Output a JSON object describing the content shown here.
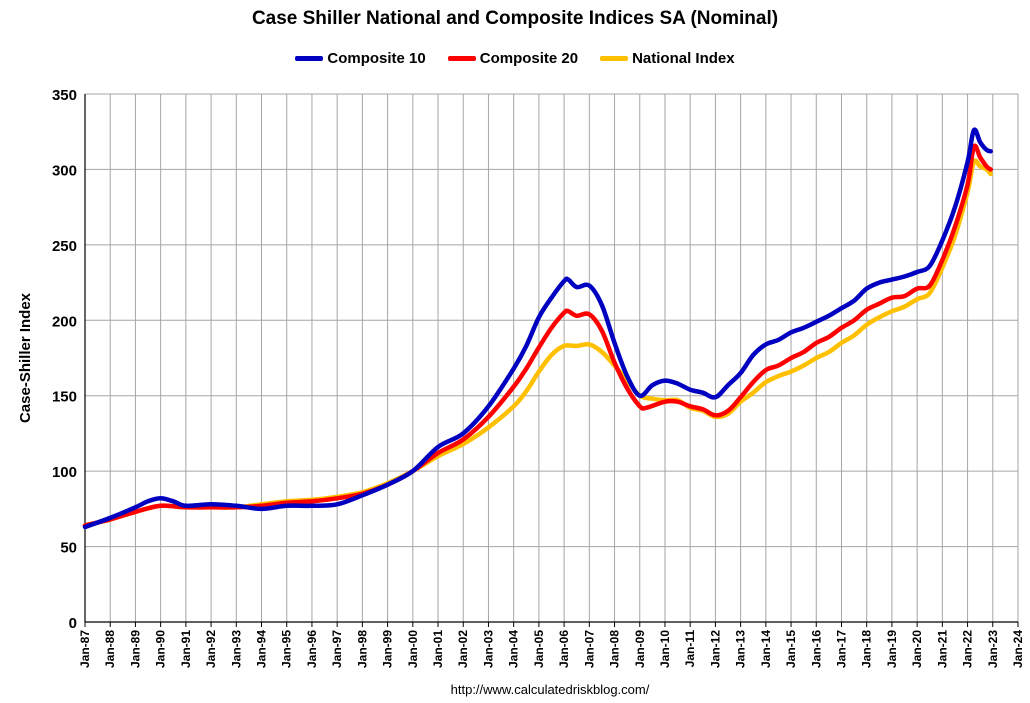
{
  "chart_data": {
    "type": "line",
    "title": "Case Shiller National and Composite Indices SA (Nominal)",
    "ylabel": "Case-Shiller Index",
    "xlabel": "",
    "ylim": [
      0,
      350
    ],
    "yticks": [
      0,
      50,
      100,
      150,
      200,
      250,
      300,
      350
    ],
    "xticks": [
      "Jan-87",
      "Jan-88",
      "Jan-89",
      "Jan-90",
      "Jan-91",
      "Jan-92",
      "Jan-93",
      "Jan-94",
      "Jan-95",
      "Jan-96",
      "Jan-97",
      "Jan-98",
      "Jan-99",
      "Jan-00",
      "Jan-01",
      "Jan-02",
      "Jan-03",
      "Jan-04",
      "Jan-05",
      "Jan-06",
      "Jan-07",
      "Jan-08",
      "Jan-09",
      "Jan-10",
      "Jan-11",
      "Jan-12",
      "Jan-13",
      "Jan-14",
      "Jan-15",
      "Jan-16",
      "Jan-17",
      "Jan-18",
      "Jan-19",
      "Jan-20",
      "Jan-21",
      "Jan-22",
      "Jan-23",
      "Jan-24"
    ],
    "grid": true,
    "legend_position": "top",
    "source": "http://www.calculatedriskblog.com/",
    "series": [
      {
        "name": "Composite 10",
        "color": "#0000c0",
        "x": [
          "Jan-87",
          "Jan-88",
          "Jan-89",
          "Jul-89",
          "Jan-90",
          "Jul-90",
          "Jan-91",
          "Jan-92",
          "Jan-93",
          "Jan-94",
          "Jan-95",
          "Jan-96",
          "Jan-97",
          "Jan-98",
          "Jan-99",
          "Jan-00",
          "Jan-01",
          "Jan-02",
          "Jan-03",
          "Jan-04",
          "Jul-04",
          "Jan-05",
          "Jul-05",
          "Jan-06",
          "Mar-06",
          "Jul-06",
          "Jan-07",
          "Jul-07",
          "Jan-08",
          "Jul-08",
          "Jan-09",
          "Jul-09",
          "Jan-10",
          "Jul-10",
          "Jan-11",
          "Jul-11",
          "Jan-12",
          "Jul-12",
          "Jan-13",
          "Jul-13",
          "Jan-14",
          "Jul-14",
          "Jan-15",
          "Jul-15",
          "Jan-16",
          "Jul-16",
          "Jan-17",
          "Jul-17",
          "Jan-18",
          "Jul-18",
          "Jan-19",
          "Jul-19",
          "Jan-20",
          "Jul-20",
          "Jan-21",
          "Jul-21",
          "Jan-22",
          "Apr-22",
          "Jul-22",
          "Oct-22",
          "Dec-22"
        ],
        "values": [
          63,
          69,
          76,
          80,
          82,
          80,
          77,
          78,
          77,
          75,
          77,
          77,
          78,
          84,
          91,
          100,
          116,
          125,
          143,
          168,
          183,
          202,
          215,
          226,
          227,
          222,
          223,
          210,
          185,
          163,
          150,
          157,
          160,
          158,
          154,
          152,
          149,
          157,
          165,
          177,
          184,
          187,
          192,
          195,
          199,
          203,
          208,
          213,
          221,
          225,
          227,
          229,
          232,
          236,
          253,
          275,
          305,
          326,
          318,
          313,
          312
        ]
      },
      {
        "name": "Composite 20",
        "color": "#ff0000",
        "x": [
          "Jan-87",
          "Jan-88",
          "Jan-89",
          "Jan-90",
          "Jan-91",
          "Jan-92",
          "Jan-93",
          "Jan-94",
          "Jan-95",
          "Jan-96",
          "Jan-97",
          "Jan-98",
          "Jan-99",
          "Jan-00",
          "Jan-01",
          "Jan-02",
          "Jan-03",
          "Jan-04",
          "Jul-04",
          "Jan-05",
          "Jul-05",
          "Jan-06",
          "Mar-06",
          "Jul-06",
          "Jan-07",
          "Jul-07",
          "Jan-08",
          "Jul-08",
          "Jan-09",
          "Apr-09",
          "Jan-10",
          "Jul-10",
          "Jan-11",
          "Jul-11",
          "Jan-12",
          "Jul-12",
          "Jan-13",
          "Jul-13",
          "Jan-14",
          "Jul-14",
          "Jan-15",
          "Jul-15",
          "Jan-16",
          "Jul-16",
          "Jan-17",
          "Jul-17",
          "Jan-18",
          "Jul-18",
          "Jan-19",
          "Jul-19",
          "Jan-20",
          "Jul-20",
          "Jan-21",
          "Jul-21",
          "Jan-22",
          "Apr-22",
          "Jul-22",
          "Oct-22",
          "Dec-22"
        ],
        "values": [
          64,
          68,
          73,
          77,
          76,
          76,
          76,
          77,
          79,
          80,
          82,
          85,
          91,
          100,
          112,
          121,
          136,
          156,
          168,
          182,
          195,
          205,
          206,
          203,
          204,
          193,
          172,
          155,
          143,
          142,
          146,
          146,
          143,
          141,
          137,
          140,
          149,
          159,
          167,
          170,
          175,
          179,
          185,
          189,
          195,
          200,
          207,
          211,
          215,
          216,
          221,
          223,
          240,
          262,
          290,
          315,
          308,
          302,
          300
        ]
      },
      {
        "name": "National Index",
        "color": "#ffc000",
        "x": [
          "Jan-87",
          "Jan-88",
          "Jan-89",
          "Jan-90",
          "Jan-91",
          "Jan-92",
          "Jan-93",
          "Jan-94",
          "Jan-95",
          "Jan-96",
          "Jan-97",
          "Jan-98",
          "Jan-99",
          "Jan-00",
          "Jan-01",
          "Jan-02",
          "Jan-03",
          "Jan-04",
          "Jul-04",
          "Jan-05",
          "Jul-05",
          "Jan-06",
          "Jul-06",
          "Jan-07",
          "Jul-07",
          "Jan-08",
          "Jul-08",
          "Jan-09",
          "Jul-09",
          "Jan-10",
          "Jul-10",
          "Jan-11",
          "Jul-11",
          "Jan-12",
          "Jul-12",
          "Jan-13",
          "Jul-13",
          "Jan-14",
          "Jul-14",
          "Jan-15",
          "Jul-15",
          "Jan-16",
          "Jul-16",
          "Jan-17",
          "Jul-17",
          "Jan-18",
          "Jul-18",
          "Jan-19",
          "Jul-19",
          "Jan-20",
          "Jul-20",
          "Jan-21",
          "Jul-21",
          "Jan-22",
          "Apr-22",
          "Jul-22",
          "Oct-22",
          "Dec-22"
        ],
        "values": [
          64,
          68,
          73,
          77,
          76,
          76,
          76,
          78,
          80,
          81,
          83,
          86,
          92,
          100,
          110,
          118,
          129,
          143,
          153,
          166,
          177,
          183,
          183,
          184,
          179,
          170,
          160,
          150,
          148,
          147,
          147,
          142,
          140,
          136,
          138,
          146,
          152,
          159,
          163,
          166,
          170,
          175,
          179,
          185,
          190,
          197,
          202,
          206,
          209,
          214,
          218,
          235,
          256,
          285,
          305,
          302,
          300,
          297
        ]
      }
    ]
  }
}
